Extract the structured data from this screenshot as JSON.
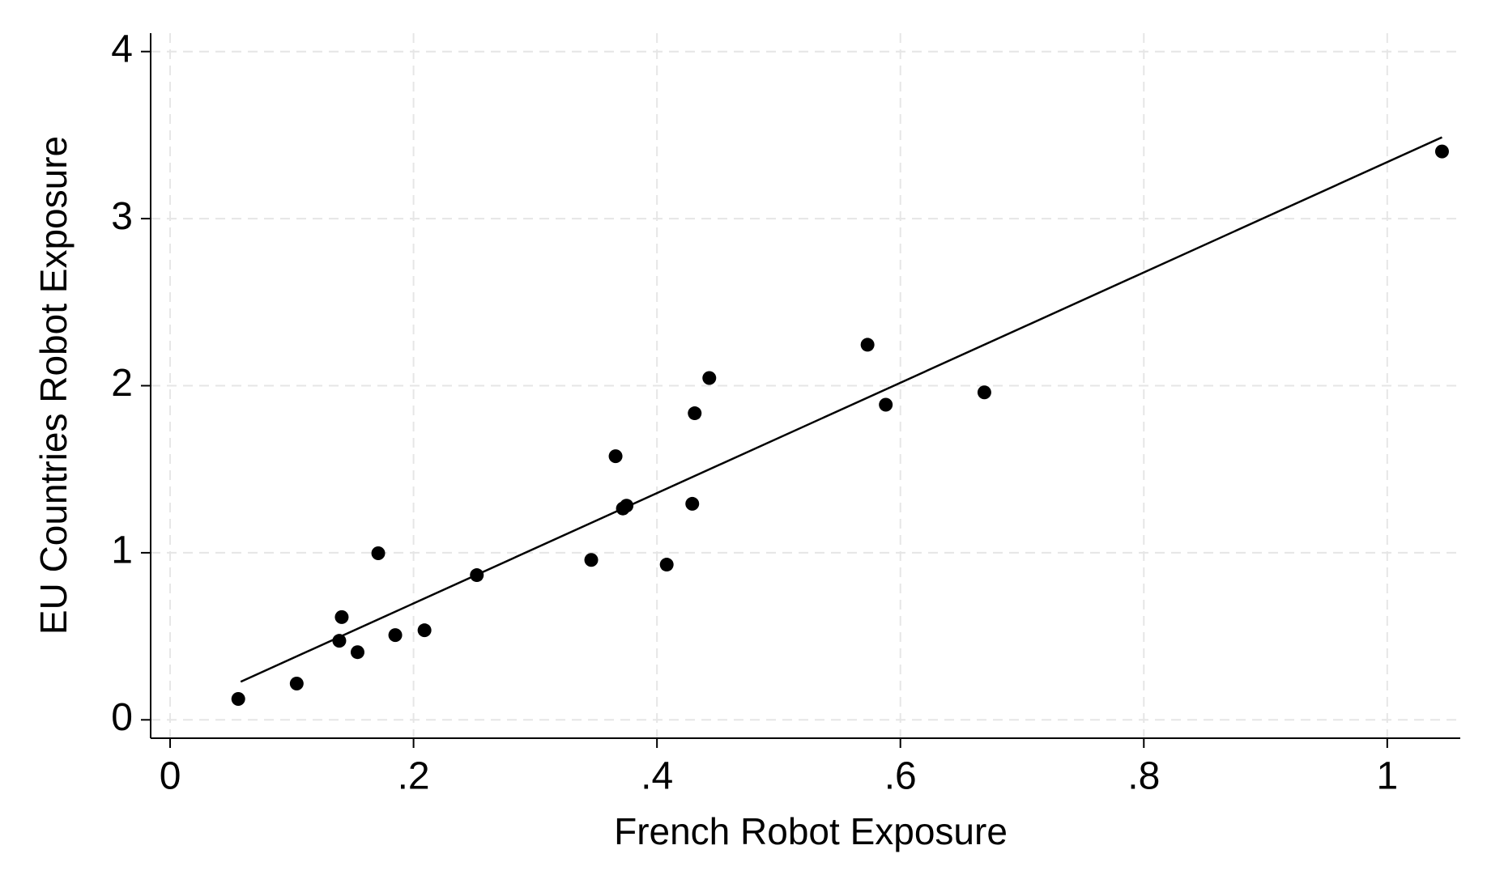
{
  "chart_data": {
    "type": "scatter",
    "xlabel": "French Robot Exposure",
    "ylabel": "EU Countries Robot Exposure",
    "x": [
      0.056,
      0.104,
      0.139,
      0.141,
      0.154,
      0.171,
      0.185,
      0.209,
      0.252,
      0.346,
      0.366,
      0.372,
      0.375,
      0.408,
      0.429,
      0.431,
      0.443,
      0.573,
      0.588,
      0.669,
      1.045
    ],
    "values": [
      0.125,
      0.217,
      0.473,
      0.615,
      0.405,
      0.997,
      0.507,
      0.536,
      0.866,
      0.957,
      1.578,
      1.265,
      1.282,
      0.929,
      1.293,
      1.835,
      2.046,
      2.245,
      1.886,
      1.96,
      3.402
    ],
    "color": "#000000",
    "fit": {
      "x": [
        0.058,
        1.045
      ],
      "y": [
        0.228,
        3.487
      ],
      "color": "#000000"
    },
    "xlim": [
      -0.016,
      1.06
    ],
    "ylim": [
      -0.11,
      4.11
    ],
    "xticks": [
      0,
      {
        "value": 0.2,
        "label": ".2"
      },
      {
        "value": 0.4,
        "label": ".4"
      },
      {
        "value": 0.6,
        "label": ".6"
      },
      {
        "value": 0.8,
        "label": ".8"
      },
      1
    ],
    "yticks": [
      0,
      1,
      2,
      3,
      4
    ],
    "grid": true
  }
}
